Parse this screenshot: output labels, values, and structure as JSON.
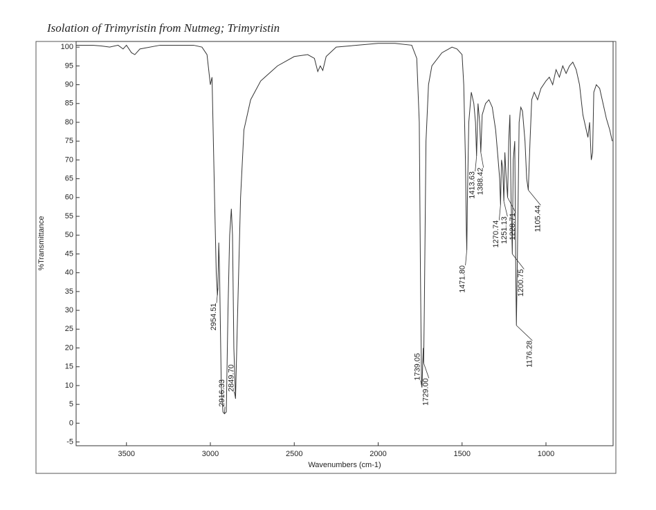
{
  "chart_data": {
    "type": "line",
    "title": "Isolation of Trimyristin from Nutmeg; Trimyristin",
    "xlabel": "Wavenumbers (cm-1)",
    "ylabel": "%Transmittance",
    "xlim": [
      3800,
      600
    ],
    "ylim": [
      -6,
      101.5
    ],
    "xticks": [
      3500,
      3000,
      2500,
      2000,
      1500,
      1000
    ],
    "yticks": [
      -5,
      0,
      5,
      10,
      15,
      20,
      25,
      30,
      35,
      40,
      45,
      50,
      55,
      60,
      65,
      70,
      75,
      80,
      85,
      90,
      95,
      100
    ],
    "series": [
      {
        "color": "#333333",
        "x": [
          3800,
          3700,
          3650,
          3600,
          3550,
          3520,
          3500,
          3470,
          3450,
          3420,
          3300,
          3100,
          3050,
          3020,
          3000,
          2990,
          2975,
          2965,
          2958,
          2955,
          2950,
          2945,
          2935,
          2925,
          2916,
          2905,
          2895,
          2885,
          2875,
          2868,
          2860,
          2850,
          2840,
          2820,
          2800,
          2760,
          2700,
          2600,
          2500,
          2420,
          2380,
          2360,
          2345,
          2330,
          2310,
          2250,
          2000,
          1900,
          1800,
          1770,
          1755,
          1748,
          1742,
          1739,
          1735,
          1731,
          1729,
          1725,
          1715,
          1700,
          1680,
          1620,
          1560,
          1530,
          1500,
          1490,
          1480,
          1474,
          1471.8,
          1468,
          1460,
          1445,
          1430,
          1420,
          1413.6,
          1405,
          1395,
          1388.4,
          1380,
          1360,
          1340,
          1320,
          1300,
          1285,
          1276,
          1270.7,
          1265,
          1258,
          1251,
          1245,
          1238,
          1228.7,
          1222,
          1215,
          1208,
          1200.7,
          1195,
          1186,
          1180,
          1176.3,
          1170,
          1160,
          1150,
          1140,
          1125,
          1115,
          1105.4,
          1095,
          1085,
          1070,
          1050,
          1030,
          1000,
          980,
          960,
          940,
          920,
          900,
          880,
          860,
          840,
          820,
          800,
          780,
          760,
          750,
          740,
          730,
          722,
          715,
          700,
          680,
          660,
          640,
          620,
          605
        ],
        "values": [
          100.5,
          100.5,
          100.3,
          100,
          100.5,
          99.5,
          100.5,
          98.5,
          98,
          99.5,
          100.5,
          100.5,
          100,
          98,
          90,
          92,
          60,
          40,
          34,
          36,
          48,
          40,
          10,
          3,
          2.5,
          3,
          30,
          50,
          57,
          50,
          20,
          6.5,
          25,
          60,
          78,
          86,
          91,
          95,
          97.5,
          98,
          97,
          93.5,
          95,
          93.8,
          97.5,
          100,
          101,
          101,
          100.5,
          97,
          80,
          40,
          12,
          9.5,
          15,
          20,
          16,
          30,
          75,
          90,
          95,
          98.5,
          100,
          99.5,
          98,
          90,
          70,
          50,
          46,
          60,
          80,
          88,
          85,
          80,
          71,
          85,
          80,
          72,
          82,
          85,
          86,
          84,
          78,
          70,
          65,
          58,
          70,
          68,
          59,
          72,
          66,
          60,
          75,
          82,
          60,
          45,
          70,
          75,
          40,
          26,
          45,
          80,
          84,
          83,
          75,
          65,
          62,
          75,
          86,
          88,
          86,
          89,
          91,
          92,
          90,
          94,
          92,
          95,
          93,
          95,
          96,
          94,
          90,
          82,
          78,
          76,
          80,
          70,
          72,
          88,
          90,
          89,
          85,
          81,
          78,
          75
        ]
      }
    ],
    "annotations": [
      {
        "label": "2954.51",
        "x": 2954.51,
        "y": 36
      },
      {
        "label": "2916.33",
        "x": 2916.33,
        "y": 2.5
      },
      {
        "label": "2849.70",
        "x": 2849.7,
        "y": 6.5
      },
      {
        "label": "1739.05",
        "x": 1739.05,
        "y": 9.5
      },
      {
        "label": "1729.00",
        "x": 1729.0,
        "y": 16
      },
      {
        "label": "1471.80",
        "x": 1471.8,
        "y": 46
      },
      {
        "label": "1413.63",
        "x": 1413.63,
        "y": 71
      },
      {
        "label": "1388.42",
        "x": 1388.42,
        "y": 72
      },
      {
        "label": "1270.74",
        "x": 1270.74,
        "y": 58
      },
      {
        "label": "1251.13",
        "x": 1251.13,
        "y": 59
      },
      {
        "label": "1228.71",
        "x": 1228.71,
        "y": 60
      },
      {
        "label": "1200.75",
        "x": 1200.75,
        "y": 45
      },
      {
        "label": "1176.28",
        "x": 1176.28,
        "y": 26
      },
      {
        "label": "1105.44",
        "x": 1105.44,
        "y": 62
      }
    ]
  }
}
